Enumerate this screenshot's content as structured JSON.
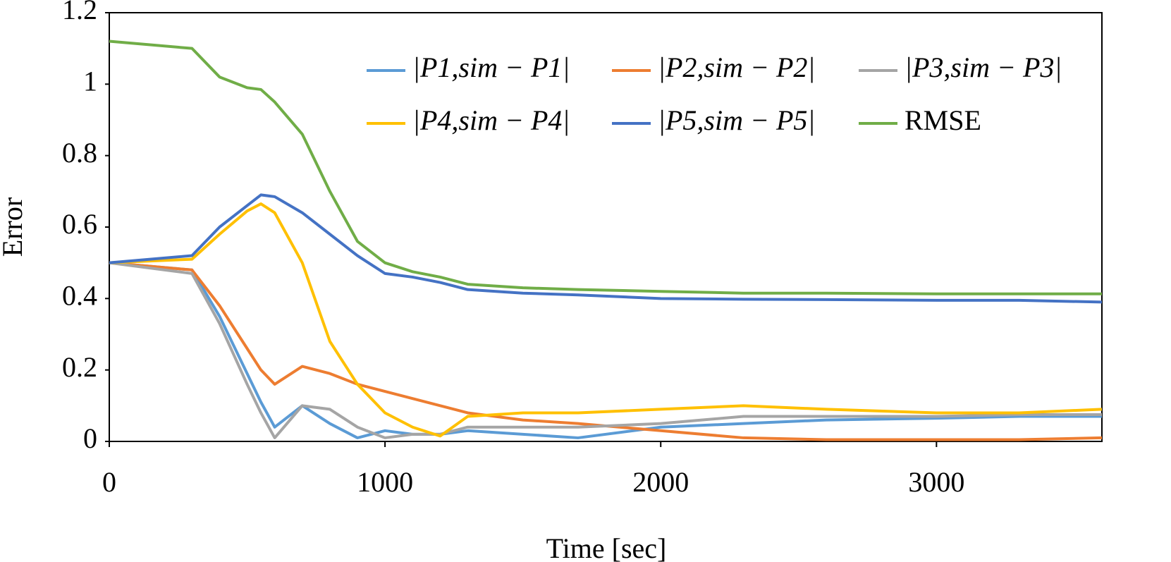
{
  "chart_data": {
    "type": "line",
    "x_label": "Time [sec]",
    "y_label": "Error",
    "x": [
      0,
      300,
      400,
      500,
      550,
      600,
      700,
      800,
      900,
      1000,
      1100,
      1200,
      1300,
      1500,
      1700,
      2000,
      2300,
      2600,
      3000,
      3300,
      3600
    ],
    "series": [
      {
        "name": "|P1,sim − P1|",
        "color": "#5b9bd5",
        "values": [
          0.5,
          0.48,
          0.35,
          0.19,
          0.11,
          0.04,
          0.1,
          0.05,
          0.01,
          0.03,
          0.02,
          0.02,
          0.03,
          0.02,
          0.01,
          0.04,
          0.05,
          0.06,
          0.065,
          0.07,
          0.07
        ]
      },
      {
        "name": "|P2,sim − P2|",
        "color": "#ed7d31",
        "values": [
          0.5,
          0.48,
          0.38,
          0.26,
          0.2,
          0.16,
          0.21,
          0.19,
          0.16,
          0.14,
          0.12,
          0.1,
          0.08,
          0.06,
          0.05,
          0.03,
          0.01,
          0.005,
          0.005,
          0.005,
          0.01
        ]
      },
      {
        "name": "|P3,sim − P3|",
        "color": "#a5a5a5",
        "values": [
          0.5,
          0.47,
          0.33,
          0.16,
          0.08,
          0.01,
          0.1,
          0.09,
          0.04,
          0.01,
          0.02,
          0.02,
          0.04,
          0.04,
          0.04,
          0.05,
          0.07,
          0.07,
          0.07,
          0.075,
          0.075
        ]
      },
      {
        "name": "|P4,sim − P4|",
        "color": "#ffc000",
        "values": [
          0.5,
          0.51,
          0.58,
          0.645,
          0.665,
          0.64,
          0.5,
          0.28,
          0.16,
          0.08,
          0.04,
          0.015,
          0.07,
          0.08,
          0.08,
          0.09,
          0.1,
          0.09,
          0.08,
          0.08,
          0.09
        ]
      },
      {
        "name": "|P5,sim − P5|",
        "color": "#4472c4",
        "values": [
          0.5,
          0.52,
          0.6,
          0.66,
          0.69,
          0.685,
          0.64,
          0.58,
          0.52,
          0.47,
          0.46,
          0.445,
          0.425,
          0.415,
          0.41,
          0.4,
          0.398,
          0.397,
          0.395,
          0.395,
          0.39
        ]
      },
      {
        "name": "RMSE",
        "color": "#70ad47",
        "values": [
          1.12,
          1.1,
          1.02,
          0.99,
          0.985,
          0.95,
          0.86,
          0.7,
          0.56,
          0.5,
          0.475,
          0.46,
          0.44,
          0.43,
          0.425,
          0.42,
          0.415,
          0.415,
          0.413,
          0.413,
          0.413
        ]
      }
    ],
    "xlim": [
      0,
      3600
    ],
    "xticks": [
      0,
      1000,
      2000,
      3000
    ],
    "ylim": [
      0,
      1.2
    ],
    "yticks": [
      0,
      0.2,
      0.4,
      0.6,
      0.8,
      1,
      1.2
    ]
  }
}
